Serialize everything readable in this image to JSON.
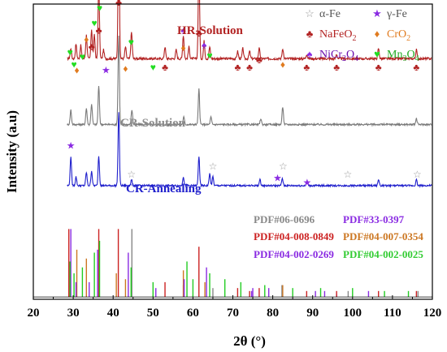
{
  "chart_data": {
    "type": "line",
    "xlabel": "2θ (°)",
    "ylabel": "Intensity (a.u)",
    "xlim": [
      20,
      120
    ],
    "xticks": [
      20,
      30,
      40,
      50,
      60,
      70,
      80,
      90,
      100,
      110,
      120
    ],
    "grid": false,
    "legend_position": "top-right",
    "series": [
      {
        "name": "HR-Solution",
        "label_parts": [
          "HR",
          "-Solution"
        ],
        "color": "#b22222",
        "label_color": "#b22222",
        "baseline": 0.815,
        "noise": 0.008,
        "peaks": [
          [
            29.4,
            0.035
          ],
          [
            30.7,
            0.05
          ],
          [
            31.9,
            0.045
          ],
          [
            33.3,
            0.08
          ],
          [
            34.6,
            0.1
          ],
          [
            35.3,
            0.08
          ],
          [
            36.4,
            0.26
          ],
          [
            37.6,
            0.03
          ],
          [
            41.4,
            0.46
          ],
          [
            43.1,
            0.04
          ],
          [
            44.6,
            0.09
          ],
          [
            53.0,
            0.04
          ],
          [
            55.8,
            0.03
          ],
          [
            57.6,
            0.08
          ],
          [
            59.0,
            0.04
          ],
          [
            61.5,
            0.34
          ],
          [
            62.8,
            0.06
          ],
          [
            64.2,
            0.04
          ],
          [
            71.2,
            0.025
          ],
          [
            72.5,
            0.035
          ],
          [
            74.2,
            0.025
          ],
          [
            76.6,
            0.035
          ],
          [
            82.5,
            0.035
          ],
          [
            88.5,
            0.015
          ],
          [
            96.0,
            0.015
          ],
          [
            106.5,
            0.035
          ],
          [
            116.0,
            0.03
          ]
        ]
      },
      {
        "name": "CR-Solution",
        "label_parts": [
          "CR",
          "-Solution"
        ],
        "color": "#7a7a7a",
        "label_color": "#8c8c8c",
        "baseline": 0.592,
        "noise": 0.006,
        "peaks": [
          [
            29.4,
            0.05
          ],
          [
            33.3,
            0.055
          ],
          [
            34.6,
            0.07
          ],
          [
            36.4,
            0.13
          ],
          [
            41.4,
            0.3
          ],
          [
            44.7,
            0.05
          ],
          [
            57.7,
            0.025
          ],
          [
            61.5,
            0.12
          ],
          [
            64.5,
            0.025
          ],
          [
            77.0,
            0.02
          ],
          [
            82.5,
            0.06
          ],
          [
            116.0,
            0.02
          ]
        ]
      },
      {
        "name": "CR-Annealing",
        "label_parts": [
          "CR",
          "-Annealing"
        ],
        "color": "#1f1fcc",
        "label_color": "#1f1fcc",
        "baseline": 0.385,
        "noise": 0.006,
        "peaks": [
          [
            29.4,
            0.1
          ],
          [
            30.7,
            0.03
          ],
          [
            33.3,
            0.045
          ],
          [
            34.6,
            0.05
          ],
          [
            36.4,
            0.1
          ],
          [
            41.4,
            0.25
          ],
          [
            44.6,
            0.02
          ],
          [
            57.6,
            0.03
          ],
          [
            61.5,
            0.1
          ],
          [
            64.2,
            0.04
          ],
          [
            65.0,
            0.03
          ],
          [
            76.8,
            0.02
          ],
          [
            82.4,
            0.025
          ],
          [
            88.6,
            0.015
          ],
          [
            106.5,
            0.02
          ],
          [
            116.0,
            0.02
          ]
        ]
      }
    ],
    "markers": [
      {
        "symbol": "♣",
        "color": "#b22222",
        "x": 41.4,
        "y": 0.995
      },
      {
        "symbol": "♣",
        "color": "#b22222",
        "x": 36.4,
        "y": 0.9
      },
      {
        "symbol": "♣",
        "color": "#b22222",
        "x": 61.5,
        "y": 0.89
      },
      {
        "symbol": "♣",
        "color": "#b22222",
        "x": 34.6,
        "y": 0.845
      },
      {
        "symbol": "♣",
        "color": "#b22222",
        "x": 53.0,
        "y": 0.775
      },
      {
        "symbol": "♣",
        "color": "#b22222",
        "x": 71.2,
        "y": 0.775
      },
      {
        "symbol": "♣",
        "color": "#b22222",
        "x": 74.2,
        "y": 0.775
      },
      {
        "symbol": "♣",
        "color": "#b22222",
        "x": 76.6,
        "y": 0.8
      },
      {
        "symbol": "♣",
        "color": "#b22222",
        "x": 88.5,
        "y": 0.775
      },
      {
        "symbol": "♣",
        "color": "#b22222",
        "x": 96.0,
        "y": 0.775
      },
      {
        "symbol": "♣",
        "color": "#b22222",
        "x": 106.5,
        "y": 0.775
      },
      {
        "symbol": "♣",
        "color": "#b22222",
        "x": 116.0,
        "y": 0.775
      },
      {
        "symbol": "♦",
        "color": "#e07b1f",
        "x": 30.9,
        "y": 0.765
      },
      {
        "symbol": "♦",
        "color": "#e07b1f",
        "x": 33.3,
        "y": 0.87
      },
      {
        "symbol": "♦",
        "color": "#e07b1f",
        "x": 43.1,
        "y": 0.77
      },
      {
        "symbol": "♦",
        "color": "#e07b1f",
        "x": 57.6,
        "y": 0.84
      },
      {
        "symbol": "♦",
        "color": "#e07b1f",
        "x": 82.5,
        "y": 0.785
      },
      {
        "symbol": "♠",
        "color": "#8a2be2",
        "x": 57.6,
        "y": 0.9
      },
      {
        "symbol": "♠",
        "color": "#8a2be2",
        "x": 62.8,
        "y": 0.85
      },
      {
        "symbol": "♥",
        "color": "#22dd22",
        "x": 36.6,
        "y": 0.975
      },
      {
        "symbol": "♥",
        "color": "#22dd22",
        "x": 29.2,
        "y": 0.825
      },
      {
        "symbol": "♥",
        "color": "#22dd22",
        "x": 30.2,
        "y": 0.785
      },
      {
        "symbol": "♥",
        "color": "#22dd22",
        "x": 32.3,
        "y": 0.81
      },
      {
        "symbol": "♥",
        "color": "#22dd22",
        "x": 35.3,
        "y": 0.925
      },
      {
        "symbol": "♥",
        "color": "#22dd22",
        "x": 44.5,
        "y": 0.86
      },
      {
        "symbol": "♥",
        "color": "#22dd22",
        "x": 50.0,
        "y": 0.775
      },
      {
        "symbol": "♥",
        "color": "#22dd22",
        "x": 64.2,
        "y": 0.815
      },
      {
        "symbol": "★",
        "color": "#8a2be2",
        "x": 38.2,
        "y": 0.765
      },
      {
        "symbol": "★",
        "color": "#8a2be2",
        "x": 29.4,
        "y": 0.51
      },
      {
        "symbol": "★",
        "color": "#8a2be2",
        "x": 81.2,
        "y": 0.4
      },
      {
        "symbol": "★",
        "color": "#8a2be2",
        "x": 88.6,
        "y": 0.385
      },
      {
        "symbol": "☆",
        "color": "#9a9a9a",
        "x": 44.6,
        "y": 0.412
      },
      {
        "symbol": "☆",
        "color": "#9a9a9a",
        "x": 65.0,
        "y": 0.44
      },
      {
        "symbol": "☆",
        "color": "#9a9a9a",
        "x": 82.6,
        "y": 0.44
      },
      {
        "symbol": "☆",
        "color": "#9a9a9a",
        "x": 98.8,
        "y": 0.412
      },
      {
        "symbol": "☆",
        "color": "#9a9a9a",
        "x": 116.2,
        "y": 0.412
      }
    ],
    "legend": [
      {
        "symbol": "☆",
        "symbol_color": "#9a9a9a",
        "label": "α-Fe",
        "label_color": "#555555",
        "col": 0,
        "row": 0
      },
      {
        "symbol": "★",
        "symbol_color": "#8a2be2",
        "label": "γ-Fe",
        "label_color": "#555555",
        "col": 1,
        "row": 0
      },
      {
        "symbol": "♣",
        "symbol_color": "#b22222",
        "label": "NaFeO",
        "sub": "2",
        "label_color": "#b22222",
        "col": 0,
        "row": 1
      },
      {
        "symbol": "♦",
        "symbol_color": "#e07b1f",
        "label": "CrO",
        "sub": "2",
        "label_color": "#e07b1f",
        "col": 1,
        "row": 1
      },
      {
        "symbol": "♠",
        "symbol_color": "#8a2be2",
        "label": "NiCr",
        "sub": "2",
        "label2": "O",
        "sub2": "4",
        "label_color": "#6a0dad",
        "col": 0,
        "row": 2
      },
      {
        "symbol": "♥",
        "symbol_color": "#22dd22",
        "label": "Mn",
        "sub": "3",
        "label2": "O",
        "sub2": "4",
        "label_color": "#22aa22",
        "col": 1,
        "row": 2
      }
    ],
    "reference_labels": [
      {
        "text": "PDF#06-0696",
        "color": "#888888"
      },
      {
        "text": "PDF#33-0397",
        "color": "#8a2be2"
      },
      {
        "text": "PDF#04-008-0849",
        "color": "#cc2222"
      },
      {
        "text": "PDF#04-007-0354",
        "color": "#cc7722"
      },
      {
        "text": "PDF#04-002-0269",
        "color": "#8a2be2"
      },
      {
        "text": "PDF#04-002-0025",
        "color": "#33cc33"
      }
    ],
    "reference_sticks": [
      {
        "color": "#888888",
        "positions": [
          44.7,
          65.0,
          82.3,
          98.9,
          116.4
        ],
        "heights": [
          0.23,
          0.03,
          0.04,
          0.02,
          0.02
        ]
      },
      {
        "color": "#8a2be2",
        "positions": [
          29.4,
          34.0,
          50.7,
          74.7,
          90.7,
          96.0
        ],
        "heights": [
          0.23,
          0.05,
          0.03,
          0.02,
          0.02,
          0.01
        ]
      },
      {
        "color": "#cc2222",
        "positions": [
          28.9,
          36.4,
          41.3,
          53.0,
          57.6,
          61.5,
          71.2,
          74.2,
          76.6,
          88.5,
          96.0,
          106.5,
          116.0
        ],
        "heights": [
          0.23,
          0.23,
          0.23,
          0.05,
          0.04,
          0.17,
          0.03,
          0.02,
          0.03,
          0.02,
          0.02,
          0.02,
          0.02
        ]
      },
      {
        "color": "#cc7722",
        "positions": [
          30.9,
          33.3,
          40.8,
          43.1,
          57.6,
          63.0,
          82.5
        ],
        "heights": [
          0.16,
          0.13,
          0.08,
          0.06,
          0.09,
          0.05,
          0.04
        ]
      },
      {
        "color": "#22cc22",
        "positions": [
          29.2,
          30.2,
          32.3,
          35.3,
          36.6,
          44.5,
          50.0,
          58.5,
          60.0,
          64.2,
          68.0,
          72.0,
          78.0,
          85.0,
          92.0,
          100.0,
          108.0,
          114.0
        ],
        "heights": [
          0.12,
          0.08,
          0.1,
          0.15,
          0.19,
          0.1,
          0.05,
          0.12,
          0.06,
          0.08,
          0.06,
          0.05,
          0.04,
          0.03,
          0.03,
          0.03,
          0.02,
          0.02
        ]
      },
      {
        "color": "#8a2be2",
        "positions": [
          30.7,
          36.1,
          43.8,
          57.8,
          63.4,
          75.0,
          79.0,
          93.0,
          104.0
        ],
        "heights": [
          0.05,
          0.16,
          0.15,
          0.06,
          0.1,
          0.03,
          0.03,
          0.02,
          0.02
        ]
      }
    ]
  }
}
